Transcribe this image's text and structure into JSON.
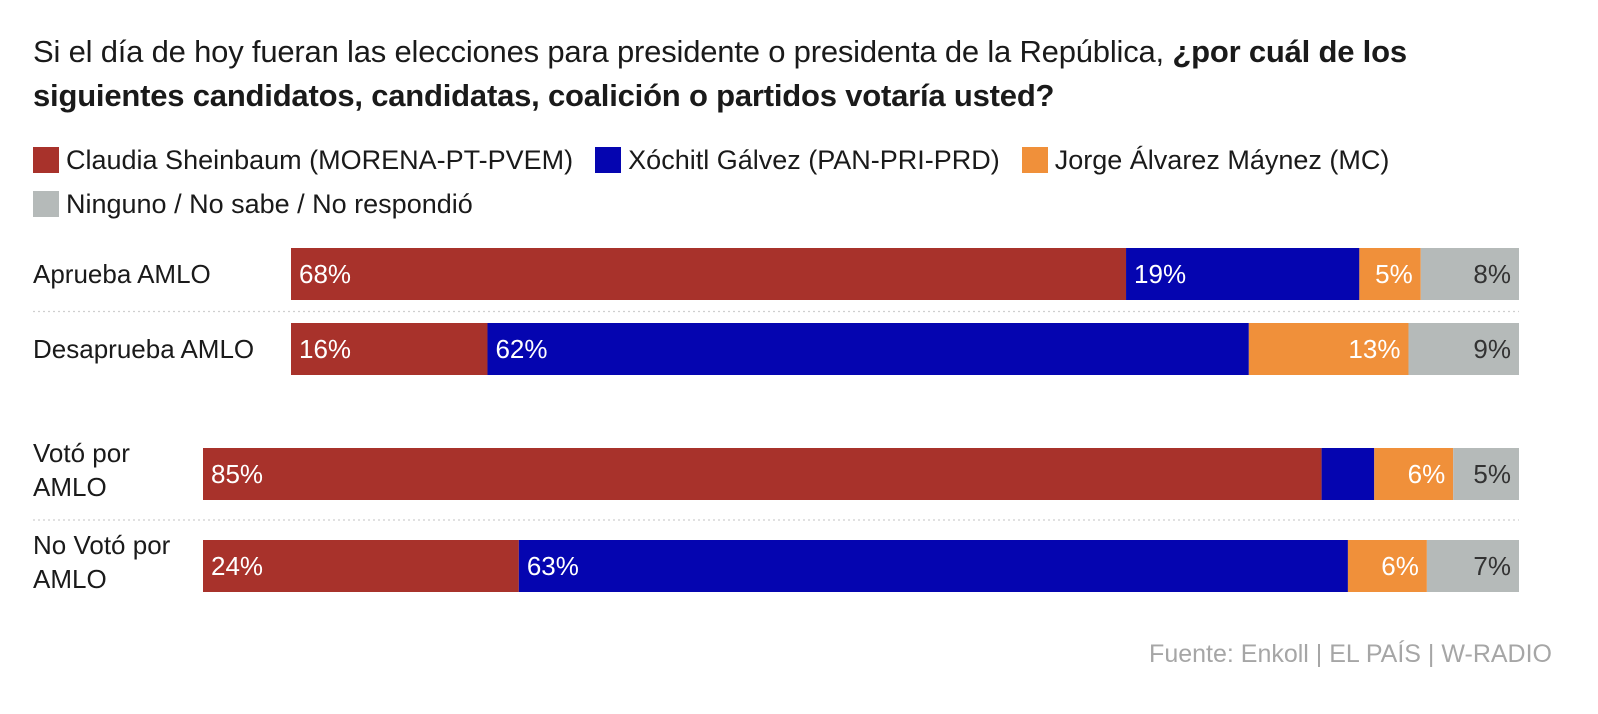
{
  "title": {
    "normal": "Si el día de hoy fueran las elecciones para presidente o presidenta de la República, ",
    "bold": "¿por cuál de los siguientes candidatos, candidatas, coalición o partidos votaría usted?"
  },
  "colors": {
    "sheinbaum": "#a8322b",
    "galvez": "#0505b0",
    "maynez": "#f0903a",
    "ninguno": "#b5bab9"
  },
  "chart_data": {
    "type": "bar",
    "orientation": "horizontal",
    "stacked": true,
    "x_max": 100,
    "legend_position": "top",
    "series": [
      {
        "key": "sheinbaum",
        "name": "Claudia Sheinbaum (MORENA-PT-PVEM)"
      },
      {
        "key": "galvez",
        "name": "Xóchitl Gálvez (PAN-PRI-PRD)"
      },
      {
        "key": "maynez",
        "name": "Jorge Álvarez Máynez (MC)"
      },
      {
        "key": "ninguno",
        "name": "Ninguno / No sabe / No respondió"
      }
    ],
    "groups": [
      {
        "rows": [
          {
            "label": "Aprueba AMLO",
            "values": [
              68,
              19,
              5,
              8
            ],
            "labels": [
              "68%",
              "19%",
              "5%",
              "8%"
            ]
          },
          {
            "label": "Desaprueba AMLO",
            "values": [
              16,
              62,
              13,
              9
            ],
            "labels": [
              "16%",
              "62%",
              "13%",
              "9%"
            ]
          }
        ]
      },
      {
        "rows": [
          {
            "label": "Votó por AMLO",
            "values": [
              85,
              4,
              6,
              5
            ],
            "labels": [
              "85%",
              "",
              "6%",
              "5%"
            ]
          },
          {
            "label": "No Votó por AMLO",
            "values": [
              24,
              63,
              6,
              7
            ],
            "labels": [
              "24%",
              "63%",
              "6%",
              "7%"
            ]
          }
        ]
      }
    ]
  },
  "source": "Fuente: Enkoll | EL PAÍS | W-RADIO"
}
